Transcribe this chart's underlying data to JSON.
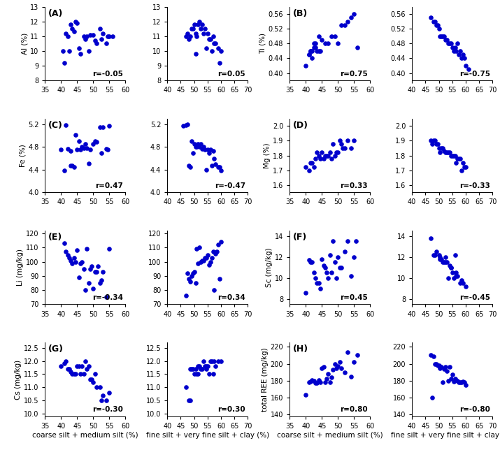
{
  "dot_color": "#0000cc",
  "dot_size": 14,
  "panels": [
    {
      "label": "(A)",
      "ylabel": "Al (%)",
      "ylim": [
        8,
        13
      ],
      "yticks": [
        8,
        9,
        10,
        11,
        12,
        13
      ],
      "r_left": "-0.05",
      "r_right": "0.05",
      "x_left": [
        41.0,
        40.5,
        43.0,
        45.0,
        43.5,
        44.0,
        41.5,
        42.0,
        46.0,
        47.0,
        48.0,
        47.5,
        49.0,
        50.0,
        51.0,
        52.0,
        53.0,
        54.0,
        55.0,
        45.5,
        48.5,
        50.5,
        52.5,
        54.5,
        56.0,
        42.5,
        44.5
      ],
      "y_left": [
        9.2,
        10.0,
        11.8,
        11.9,
        11.5,
        11.3,
        11.2,
        11.0,
        9.8,
        11.0,
        11.0,
        10.8,
        11.1,
        11.1,
        10.5,
        11.5,
        11.2,
        10.5,
        11.0,
        10.2,
        10.0,
        10.7,
        10.8,
        11.0,
        11.0,
        10.0,
        12.0
      ],
      "x_right": [
        47.0,
        48.0,
        49.0,
        50.0,
        50.5,
        51.0,
        52.0,
        53.0,
        54.0,
        55.0,
        56.0,
        57.0,
        58.0,
        59.0,
        60.0,
        47.5,
        49.5,
        51.5,
        53.5,
        55.5,
        57.5,
        59.5,
        48.5,
        52.5,
        56.5,
        50.5,
        54.5
      ],
      "y_right": [
        11.0,
        10.8,
        11.5,
        11.8,
        11.2,
        11.0,
        12.0,
        11.8,
        11.5,
        11.2,
        10.8,
        11.0,
        10.5,
        10.2,
        10.0,
        11.2,
        11.5,
        11.8,
        11.2,
        10.8,
        10.5,
        9.2,
        11.0,
        11.5,
        10.0,
        9.8,
        10.2
      ]
    },
    {
      "label": "(B)",
      "ylabel": "Ti (%)",
      "ylim": [
        0.38,
        0.58
      ],
      "yticks": [
        0.4,
        0.44,
        0.48,
        0.52,
        0.56
      ],
      "r_left": "0.75",
      "r_right": "-0.75",
      "x_left": [
        40.0,
        41.0,
        41.5,
        42.0,
        42.5,
        43.0,
        43.5,
        44.0,
        44.5,
        41.0,
        41.5,
        42.0,
        42.5,
        43.0,
        44.0,
        45.0,
        46.0,
        47.0,
        48.0,
        49.0,
        50.0,
        51.0,
        52.0,
        53.0,
        54.0,
        55.0,
        56.0
      ],
      "y_left": [
        0.42,
        0.45,
        0.46,
        0.44,
        0.47,
        0.47,
        0.46,
        0.46,
        0.46,
        0.45,
        0.46,
        0.46,
        0.48,
        0.48,
        0.5,
        0.49,
        0.48,
        0.48,
        0.5,
        0.5,
        0.48,
        0.53,
        0.53,
        0.54,
        0.55,
        0.56,
        0.47
      ],
      "x_right": [
        47.0,
        48.0,
        49.0,
        50.0,
        51.0,
        52.0,
        53.0,
        54.0,
        55.0,
        56.0,
        57.0,
        58.0,
        59.0,
        60.0,
        48.5,
        50.5,
        52.5,
        54.5,
        56.5,
        58.5,
        49.5,
        51.5,
        53.5,
        55.5,
        57.5,
        59.5,
        61.0
      ],
      "y_right": [
        0.55,
        0.54,
        0.53,
        0.52,
        0.5,
        0.5,
        0.49,
        0.48,
        0.47,
        0.47,
        0.48,
        0.46,
        0.45,
        0.42,
        0.54,
        0.5,
        0.49,
        0.48,
        0.46,
        0.44,
        0.53,
        0.5,
        0.48,
        0.46,
        0.45,
        0.44,
        0.41
      ]
    },
    {
      "label": "(C)",
      "ylabel": "Fe (%)",
      "ylim": [
        4.0,
        5.3
      ],
      "yticks": [
        4.0,
        4.4,
        4.8,
        5.2
      ],
      "r_left": "0.47",
      "r_right": "-0.47",
      "x_left": [
        40.0,
        41.0,
        42.0,
        43.0,
        44.0,
        45.0,
        46.0,
        47.0,
        48.0,
        49.0,
        50.0,
        51.0,
        52.0,
        53.0,
        54.0,
        55.0,
        41.5,
        43.5,
        45.5,
        47.5,
        43.0,
        44.5,
        46.5,
        48.5,
        50.5,
        52.5,
        54.5
      ],
      "y_left": [
        4.75,
        4.38,
        4.77,
        4.73,
        4.45,
        4.76,
        4.75,
        4.78,
        4.78,
        4.75,
        4.85,
        4.89,
        5.15,
        5.15,
        4.77,
        5.18,
        5.19,
        4.47,
        4.9,
        4.85,
        4.47,
        5.01,
        4.81,
        4.51,
        4.9,
        4.7,
        4.75
      ],
      "x_right": [
        46.0,
        47.0,
        48.0,
        49.0,
        50.0,
        51.0,
        52.0,
        53.0,
        54.0,
        55.0,
        56.0,
        57.0,
        58.0,
        59.0,
        60.0,
        47.5,
        49.5,
        51.5,
        53.5,
        55.5,
        57.5,
        59.5,
        48.5,
        52.5,
        56.5,
        50.5,
        54.5
      ],
      "y_right": [
        5.18,
        5.19,
        4.47,
        4.9,
        4.85,
        4.8,
        4.8,
        4.77,
        4.75,
        4.75,
        4.75,
        4.73,
        4.5,
        4.45,
        4.38,
        5.2,
        4.7,
        4.85,
        4.8,
        4.7,
        4.6,
        4.45,
        4.45,
        4.85,
        4.47,
        4.8,
        4.4
      ]
    },
    {
      "label": "(D)",
      "ylabel": "Mg (%)",
      "ylim": [
        1.55,
        2.05
      ],
      "yticks": [
        1.6,
        1.7,
        1.8,
        1.9,
        2.0
      ],
      "r_left": "0.33",
      "r_right": "-0.33",
      "x_left": [
        40.0,
        41.0,
        42.0,
        43.0,
        44.0,
        45.0,
        46.0,
        47.0,
        48.0,
        49.0,
        50.0,
        51.0,
        52.0,
        53.0,
        54.0,
        55.0,
        41.5,
        43.5,
        45.5,
        47.5,
        49.5,
        51.5,
        42.5,
        44.5,
        46.5,
        48.5,
        50.5
      ],
      "y_left": [
        1.72,
        1.7,
        1.75,
        1.78,
        1.8,
        1.82,
        1.8,
        1.8,
        1.78,
        1.8,
        1.82,
        1.88,
        1.85,
        1.9,
        1.85,
        1.9,
        1.75,
        1.82,
        1.78,
        1.82,
        1.82,
        1.85,
        1.72,
        1.78,
        1.8,
        1.88,
        1.9
      ],
      "x_right": [
        47.0,
        48.0,
        49.0,
        50.0,
        51.0,
        52.0,
        53.0,
        54.0,
        55.0,
        56.0,
        57.0,
        58.0,
        59.0,
        60.0,
        48.5,
        50.5,
        52.5,
        54.5,
        56.5,
        58.5,
        49.5,
        51.5,
        53.5,
        55.5,
        57.5,
        59.5,
        47.5
      ],
      "y_right": [
        1.9,
        1.9,
        1.88,
        1.85,
        1.85,
        1.83,
        1.82,
        1.82,
        1.8,
        1.8,
        1.78,
        1.78,
        1.75,
        1.72,
        1.9,
        1.82,
        1.82,
        1.8,
        1.75,
        1.7,
        1.88,
        1.85,
        1.82,
        1.8,
        1.78,
        1.72,
        1.88
      ]
    },
    {
      "label": "(E)",
      "ylabel": "Li (mg/kg)",
      "ylim": [
        70,
        122
      ],
      "yticks": [
        70,
        80,
        90,
        100,
        110,
        120
      ],
      "r_left": "-0.34",
      "r_right": "0.34",
      "x_left": [
        41.0,
        41.5,
        42.0,
        42.5,
        43.0,
        43.5,
        44.0,
        44.5,
        45.0,
        45.5,
        46.0,
        46.5,
        47.0,
        47.5,
        48.0,
        48.5,
        49.0,
        49.5,
        50.0,
        50.5,
        51.0,
        51.5,
        52.0,
        52.5,
        53.0,
        54.0,
        55.0
      ],
      "y_left": [
        113.0,
        107.0,
        105.0,
        103.0,
        101.0,
        99.0,
        103.0,
        100.0,
        108.0,
        89.0,
        99.0,
        100.0,
        95.0,
        80.0,
        109.0,
        85.0,
        95.0,
        97.0,
        81.0,
        93.0,
        93.0,
        97.0,
        85.0,
        87.0,
        93.0,
        75.0,
        109.0
      ],
      "x_right": [
        47.0,
        48.0,
        49.0,
        50.0,
        51.0,
        52.0,
        53.0,
        54.0,
        55.0,
        56.0,
        57.0,
        58.0,
        59.0,
        60.0,
        48.5,
        50.5,
        52.5,
        54.5,
        56.5,
        58.5,
        49.5,
        51.5,
        53.5,
        55.5,
        57.5,
        59.5,
        47.5
      ],
      "y_right": [
        76.0,
        88.0,
        90.0,
        93.0,
        109.0,
        110.0,
        101.0,
        103.0,
        105.0,
        100.0,
        107.0,
        106.0,
        112.0,
        114.0,
        86.0,
        85.0,
        100.0,
        103.0,
        103.0,
        107.0,
        92.0,
        99.0,
        101.0,
        98.0,
        80.0,
        88.0,
        92.0
      ]
    },
    {
      "label": "(F)",
      "ylabel": "Sc (mg/kg)",
      "ylim": [
        7.5,
        14.5
      ],
      "yticks": [
        8,
        10,
        12,
        14
      ],
      "r_left": "0.45",
      "r_right": "-0.45",
      "x_left": [
        40.0,
        41.0,
        41.5,
        42.0,
        42.5,
        43.0,
        43.5,
        44.0,
        44.5,
        45.0,
        45.5,
        46.0,
        46.5,
        47.0,
        47.5,
        48.0,
        48.5,
        49.0,
        49.5,
        50.0,
        50.5,
        51.0,
        52.0,
        53.0,
        54.0,
        55.0,
        55.5
      ],
      "y_left": [
        8.6,
        11.7,
        11.5,
        11.5,
        10.5,
        10.0,
        9.5,
        9.5,
        9.0,
        11.8,
        11.2,
        11.0,
        10.5,
        10.0,
        12.2,
        10.5,
        13.5,
        11.5,
        10.0,
        12.0,
        11.0,
        11.0,
        12.5,
        13.5,
        10.2,
        12.0,
        13.5
      ],
      "x_right": [
        47.0,
        48.0,
        49.0,
        50.0,
        50.5,
        51.0,
        51.5,
        52.0,
        52.5,
        53.0,
        53.5,
        54.0,
        54.5,
        55.0,
        55.5,
        56.0,
        56.5,
        57.0,
        58.0,
        59.0,
        60.0,
        48.5,
        50.5,
        52.5,
        54.5,
        56.5,
        58.5
      ],
      "y_right": [
        13.8,
        12.2,
        12.5,
        12.2,
        12.0,
        11.8,
        11.5,
        11.5,
        11.5,
        11.5,
        10.0,
        11.2,
        11.0,
        10.5,
        10.0,
        12.2,
        10.2,
        10.2,
        9.5,
        9.5,
        9.2,
        12.2,
        11.8,
        12.0,
        11.0,
        10.5,
        9.8
      ]
    },
    {
      "label": "(G)",
      "ylabel": "Cs (mg/kg)",
      "ylim": [
        9.9,
        12.7
      ],
      "yticks": [
        10.0,
        10.5,
        11.0,
        11.5,
        12.0,
        12.5
      ],
      "r_left": "-0.30",
      "r_right": "0.30",
      "x_left": [
        40.0,
        41.0,
        41.5,
        42.0,
        42.5,
        43.0,
        43.5,
        44.0,
        44.5,
        45.0,
        45.5,
        46.0,
        46.5,
        47.0,
        47.5,
        48.0,
        48.5,
        49.0,
        49.5,
        50.0,
        50.5,
        51.0,
        52.0,
        52.5,
        53.0,
        54.0,
        55.0
      ],
      "y_left": [
        11.8,
        11.9,
        12.0,
        11.7,
        11.7,
        11.6,
        11.5,
        11.5,
        11.5,
        11.8,
        11.8,
        11.5,
        11.8,
        11.5,
        12.0,
        11.7,
        11.8,
        11.3,
        11.3,
        11.2,
        11.5,
        11.0,
        11.0,
        10.5,
        10.7,
        10.5,
        10.8
      ],
      "x_right": [
        47.0,
        48.0,
        48.5,
        49.0,
        49.5,
        50.0,
        50.5,
        51.0,
        51.5,
        52.0,
        52.5,
        53.0,
        53.5,
        54.0,
        54.5,
        55.0,
        55.5,
        56.0,
        56.5,
        57.0,
        58.0,
        59.0,
        60.0,
        48.5,
        51.5,
        54.5,
        57.5
      ],
      "y_right": [
        11.0,
        10.5,
        11.7,
        11.7,
        11.7,
        11.5,
        11.7,
        11.5,
        11.8,
        11.8,
        11.7,
        11.7,
        12.0,
        11.8,
        11.7,
        11.8,
        11.5,
        12.0,
        12.0,
        11.5,
        11.8,
        12.0,
        12.0,
        10.5,
        11.5,
        11.8,
        12.0
      ]
    },
    {
      "label": "(H)",
      "ylabel": "total REE (mg/kg)",
      "ylim": [
        138,
        225
      ],
      "yticks": [
        140,
        160,
        180,
        200,
        220
      ],
      "r_left": "0.80",
      "r_right": "-0.80",
      "x_left": [
        40.0,
        41.0,
        41.5,
        42.0,
        42.5,
        43.0,
        43.5,
        44.0,
        44.5,
        45.0,
        45.5,
        46.0,
        46.5,
        47.0,
        47.5,
        48.0,
        48.5,
        49.0,
        49.5,
        50.0,
        50.5,
        51.0,
        52.0,
        53.0,
        54.0,
        55.0,
        56.0
      ],
      "y_left": [
        163.0,
        178.0,
        179.0,
        181.0,
        180.0,
        177.0,
        177.0,
        181.0,
        178.0,
        195.0,
        196.0,
        178.0,
        182.0,
        188.0,
        178.0,
        184.0,
        193.0,
        200.0,
        195.0,
        197.0,
        202.0,
        195.0,
        190.0,
        214.0,
        185.0,
        202.0,
        210.0
      ],
      "x_right": [
        47.0,
        48.0,
        49.0,
        50.0,
        51.0,
        52.0,
        53.0,
        54.0,
        55.0,
        56.0,
        57.0,
        58.0,
        59.0,
        60.0,
        48.5,
        50.5,
        52.5,
        54.5,
        56.5,
        58.5,
        49.5,
        51.5,
        53.5,
        55.5,
        57.5,
        59.5,
        47.5
      ],
      "y_right": [
        210.0,
        209.0,
        200.0,
        198.0,
        196.0,
        194.0,
        191.0,
        196.0,
        187.0,
        182.0,
        180.0,
        178.0,
        179.0,
        175.0,
        200.0,
        195.0,
        196.0,
        182.0,
        181.0,
        178.0,
        198.0,
        178.0,
        180.0,
        179.0,
        178.0,
        178.0,
        160.0
      ]
    }
  ],
  "xlim_left": [
    35,
    60
  ],
  "xlim_right": [
    40,
    70
  ],
  "xticks_left": [
    35,
    40,
    45,
    50,
    55,
    60
  ],
  "xticks_right": [
    40,
    45,
    50,
    55,
    60,
    65,
    70
  ],
  "xlabel_left": "coarse silt + medium silt (%)",
  "xlabel_right": "fine silt + very fine silt + clay (%)"
}
